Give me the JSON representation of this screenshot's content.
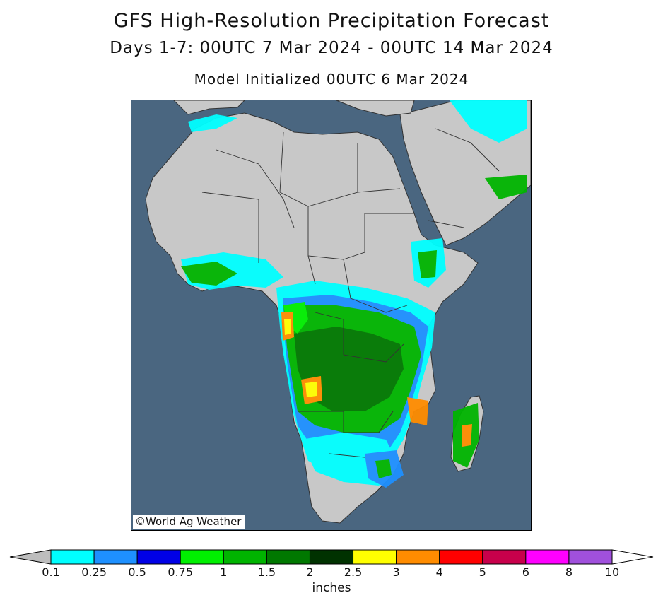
{
  "title": "GFS High-Resolution Precipitation Forecast",
  "subtitle": "Days 1-7: 00UTC 7 Mar 2024 - 00UTC 14 Mar 2024",
  "init_line": "Model Initialized 00UTC 6 Mar 2024",
  "credit": "©World Ag Weather",
  "legend": {
    "units": "inches",
    "under_color": "#bdbdbd",
    "over_color": "#ffffff",
    "bins": [
      {
        "color": "#00ffff"
      },
      {
        "color": "#1e90ff"
      },
      {
        "color": "#0000e6"
      },
      {
        "color": "#00f000"
      },
      {
        "color": "#00b400"
      },
      {
        "color": "#007800"
      },
      {
        "color": "#003200"
      },
      {
        "color": "#ffff00"
      },
      {
        "color": "#ff8c00"
      },
      {
        "color": "#ff0000"
      },
      {
        "color": "#c8004b"
      },
      {
        "color": "#ff00ff"
      },
      {
        "color": "#a050dc"
      }
    ],
    "ticks": [
      "0.1",
      "0.25",
      "0.5",
      "0.75",
      "1",
      "1.5",
      "2",
      "2.5",
      "3",
      "4",
      "5",
      "6",
      "8",
      "10"
    ]
  },
  "colors": {
    "ocean": "#4a6680",
    "land": "#c8c8c8",
    "border": "#333333"
  }
}
